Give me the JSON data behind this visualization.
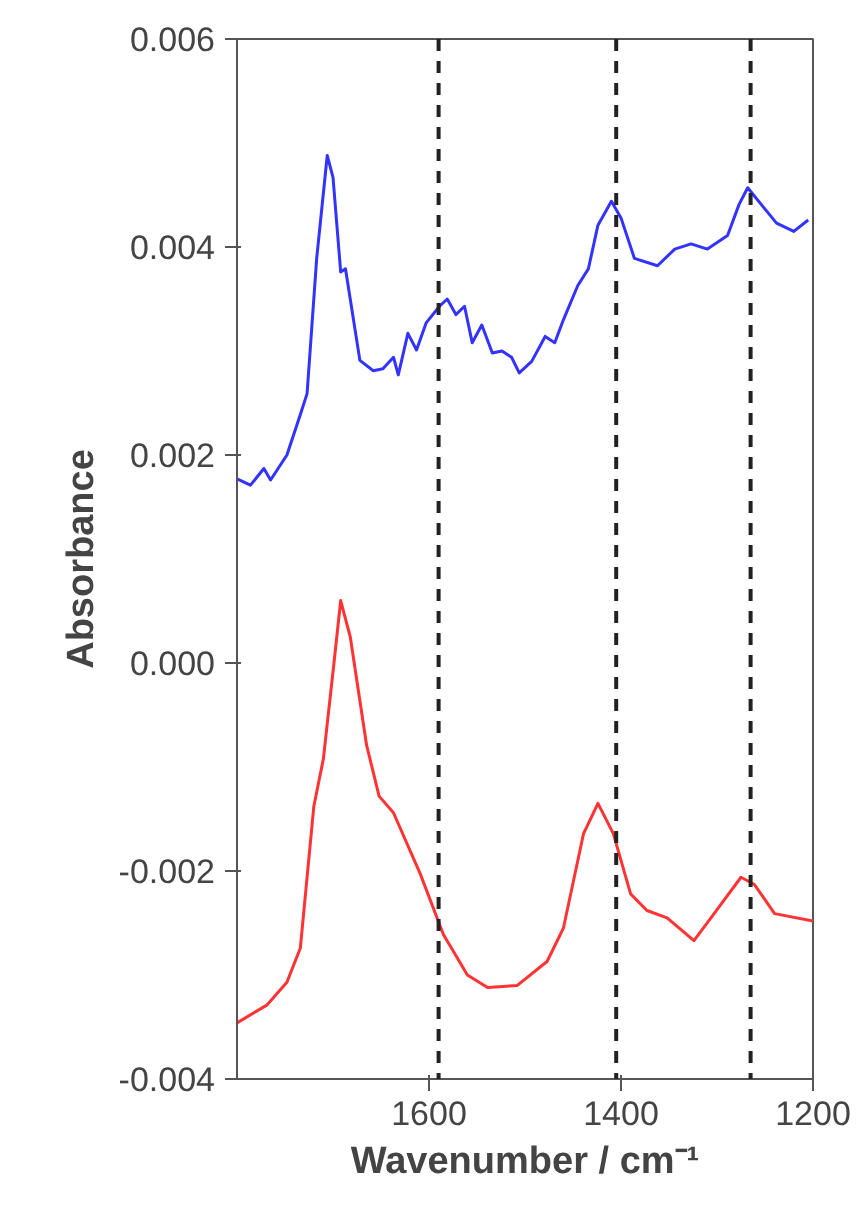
{
  "chart_data": {
    "type": "line",
    "xlabel": "Wavenumber / cm⁻¹",
    "ylabel": "Absorbance",
    "xlim": [
      1800,
      1200
    ],
    "ylim": [
      -0.004,
      0.006
    ],
    "xticks": [
      1600,
      1400,
      1200
    ],
    "yticks": [
      0.006,
      0.004,
      0.002,
      {
        "value": 0,
        "label": "0.000"
      },
      -0.002,
      -0.004
    ],
    "grid": false,
    "line_style": "solid",
    "marker": "none",
    "ref_lines": [
      {
        "axis": "x",
        "value": 1590,
        "color": "#222222",
        "line_style": "dashed"
      },
      {
        "axis": "x",
        "value": 1405,
        "color": "#222222",
        "line_style": "dashed"
      },
      {
        "axis": "x",
        "value": 1265,
        "color": "#222222",
        "line_style": "dashed"
      }
    ],
    "series": [
      {
        "color": "#3333ff",
        "x": [
          1800,
          1786,
          1772,
          1765,
          1748,
          1734,
          1727,
          1717,
          1706,
          1700,
          1692,
          1687,
          1672,
          1658,
          1648,
          1637,
          1632,
          1622,
          1613,
          1603,
          1589,
          1581,
          1572,
          1563,
          1555,
          1545,
          1534,
          1524,
          1514,
          1506,
          1493,
          1479,
          1469,
          1460,
          1445,
          1434,
          1424,
          1410,
          1400,
          1386,
          1362,
          1344,
          1327,
          1310,
          1289,
          1277,
          1268,
          1254,
          1238,
          1220,
          1205
        ],
        "values": [
          0.00177,
          0.00171,
          0.00187,
          0.00176,
          0.002,
          0.00239,
          0.00259,
          0.00389,
          0.00488,
          0.00467,
          0.00376,
          0.00379,
          0.00291,
          0.00281,
          0.00283,
          0.00294,
          0.00277,
          0.00317,
          0.00301,
          0.00327,
          0.00343,
          0.0035,
          0.00335,
          0.00343,
          0.00308,
          0.00325,
          0.00298,
          0.003,
          0.00294,
          0.00279,
          0.0029,
          0.00314,
          0.00308,
          0.0033,
          0.00363,
          0.00379,
          0.00421,
          0.00444,
          0.00428,
          0.00389,
          0.00382,
          0.00398,
          0.00403,
          0.00398,
          0.00411,
          0.00441,
          0.00457,
          0.00441,
          0.00423,
          0.00415,
          0.00426
        ]
      },
      {
        "color": "#ff3333",
        "x": [
          1800,
          1769,
          1748,
          1734,
          1720,
          1710,
          1699,
          1692,
          1682,
          1665,
          1652,
          1637,
          1609,
          1585,
          1560,
          1539,
          1508,
          1477,
          1460,
          1439,
          1424,
          1408,
          1390,
          1373,
          1352,
          1324,
          1303,
          1275,
          1261,
          1240,
          1200
        ],
        "values": [
          -0.00346,
          -0.00329,
          -0.00307,
          -0.00274,
          -0.00138,
          -0.00092,
          0.0,
          0.0006,
          0.00025,
          -0.00079,
          -0.00128,
          -0.00144,
          -0.00203,
          -0.00261,
          -0.003,
          -0.00312,
          -0.0031,
          -0.00287,
          -0.00255,
          -0.00164,
          -0.00135,
          -0.00164,
          -0.00222,
          -0.00238,
          -0.00245,
          -0.00267,
          -0.00241,
          -0.00206,
          -0.00213,
          -0.00241,
          -0.00248
        ]
      }
    ]
  }
}
